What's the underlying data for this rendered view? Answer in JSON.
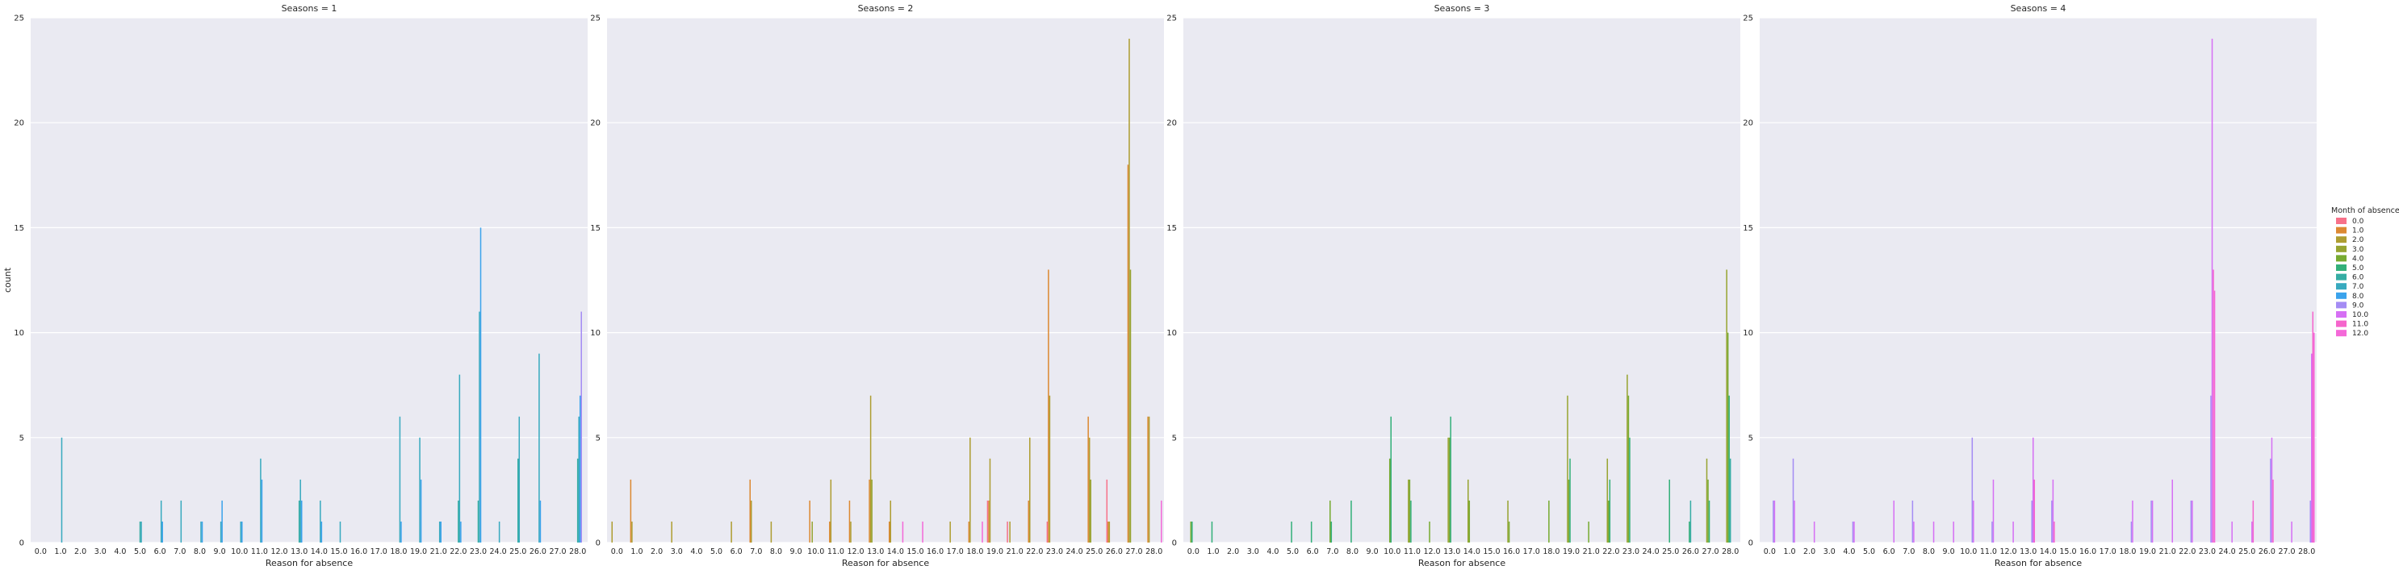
{
  "chart_data": {
    "type": "bar",
    "ylabel": "count",
    "xlabel": "Reason for absence",
    "ylim": [
      0,
      25
    ],
    "yticks": [
      0,
      5,
      10,
      15,
      20,
      25
    ],
    "categories": [
      "0.0",
      "1.0",
      "2.0",
      "3.0",
      "4.0",
      "5.0",
      "6.0",
      "7.0",
      "8.0",
      "9.0",
      "10.0",
      "11.0",
      "12.0",
      "13.0",
      "14.0",
      "15.0",
      "16.0",
      "17.0",
      "18.0",
      "19.0",
      "21.0",
      "22.0",
      "23.0",
      "24.0",
      "25.0",
      "26.0",
      "27.0",
      "28.0"
    ],
    "hue_title": "Month of absence",
    "hue_levels": [
      "0.0",
      "1.0",
      "2.0",
      "3.0",
      "4.0",
      "5.0",
      "6.0",
      "7.0",
      "8.0",
      "9.0",
      "10.0",
      "11.0",
      "12.0"
    ],
    "hue_colors": [
      "#f77189",
      "#dc8932",
      "#ae9d31",
      "#97a431",
      "#77ab31",
      "#33b07a",
      "#36ada4",
      "#38aabf",
      "#3ba3ec",
      "#a48cf4",
      "#d670f4",
      "#f565cc",
      "#f469d8"
    ],
    "grid": true,
    "legend_position": "right",
    "panels": [
      {
        "title": "Seasons = 1",
        "bars": [
          {
            "cat": "1.0",
            "hue": "7.0",
            "v": 5
          },
          {
            "cat": "5.0",
            "hue": "6.0",
            "v": 1
          },
          {
            "cat": "5.0",
            "hue": "7.0",
            "v": 1
          },
          {
            "cat": "6.0",
            "hue": "7.0",
            "v": 2
          },
          {
            "cat": "6.0",
            "hue": "8.0",
            "v": 1
          },
          {
            "cat": "7.0",
            "hue": "7.0",
            "v": 2
          },
          {
            "cat": "8.0",
            "hue": "7.0",
            "v": 1
          },
          {
            "cat": "8.0",
            "hue": "8.0",
            "v": 1
          },
          {
            "cat": "9.0",
            "hue": "7.0",
            "v": 1
          },
          {
            "cat": "9.0",
            "hue": "8.0",
            "v": 2
          },
          {
            "cat": "10.0",
            "hue": "7.0",
            "v": 1
          },
          {
            "cat": "10.0",
            "hue": "8.0",
            "v": 1
          },
          {
            "cat": "11.0",
            "hue": "7.0",
            "v": 4
          },
          {
            "cat": "11.0",
            "hue": "8.0",
            "v": 3
          },
          {
            "cat": "13.0",
            "hue": "6.0",
            "v": 2
          },
          {
            "cat": "13.0",
            "hue": "7.0",
            "v": 3
          },
          {
            "cat": "13.0",
            "hue": "8.0",
            "v": 2
          },
          {
            "cat": "14.0",
            "hue": "7.0",
            "v": 2
          },
          {
            "cat": "14.0",
            "hue": "8.0",
            "v": 1
          },
          {
            "cat": "15.0",
            "hue": "7.0",
            "v": 1
          },
          {
            "cat": "18.0",
            "hue": "7.0",
            "v": 6
          },
          {
            "cat": "18.0",
            "hue": "8.0",
            "v": 1
          },
          {
            "cat": "19.0",
            "hue": "7.0",
            "v": 5
          },
          {
            "cat": "19.0",
            "hue": "8.0",
            "v": 3
          },
          {
            "cat": "21.0",
            "hue": "7.0",
            "v": 1
          },
          {
            "cat": "21.0",
            "hue": "8.0",
            "v": 1
          },
          {
            "cat": "22.0",
            "hue": "6.0",
            "v": 2
          },
          {
            "cat": "22.0",
            "hue": "7.0",
            "v": 8
          },
          {
            "cat": "22.0",
            "hue": "8.0",
            "v": 1
          },
          {
            "cat": "23.0",
            "hue": "6.0",
            "v": 2
          },
          {
            "cat": "23.0",
            "hue": "7.0",
            "v": 11
          },
          {
            "cat": "23.0",
            "hue": "8.0",
            "v": 15
          },
          {
            "cat": "24.0",
            "hue": "7.0",
            "v": 1
          },
          {
            "cat": "25.0",
            "hue": "6.0",
            "v": 4
          },
          {
            "cat": "25.0",
            "hue": "7.0",
            "v": 6
          },
          {
            "cat": "26.0",
            "hue": "7.0",
            "v": 9
          },
          {
            "cat": "26.0",
            "hue": "8.0",
            "v": 2
          },
          {
            "cat": "28.0",
            "hue": "6.0",
            "v": 4
          },
          {
            "cat": "28.0",
            "hue": "7.0",
            "v": 6
          },
          {
            "cat": "28.0",
            "hue": "8.0",
            "v": 7
          },
          {
            "cat": "28.0",
            "hue": "9.0",
            "v": 11
          }
        ]
      },
      {
        "title": "Seasons = 2",
        "bars": [
          {
            "cat": "0.0",
            "hue": "2.0",
            "v": 1
          },
          {
            "cat": "1.0",
            "hue": "1.0",
            "v": 3
          },
          {
            "cat": "1.0",
            "hue": "2.0",
            "v": 1
          },
          {
            "cat": "3.0",
            "hue": "2.0",
            "v": 1
          },
          {
            "cat": "6.0",
            "hue": "2.0",
            "v": 1
          },
          {
            "cat": "7.0",
            "hue": "1.0",
            "v": 3
          },
          {
            "cat": "7.0",
            "hue": "2.0",
            "v": 2
          },
          {
            "cat": "8.0",
            "hue": "2.0",
            "v": 1
          },
          {
            "cat": "10.0",
            "hue": "1.0",
            "v": 2
          },
          {
            "cat": "10.0",
            "hue": "3.0",
            "v": 1
          },
          {
            "cat": "11.0",
            "hue": "2.0",
            "v": 3
          },
          {
            "cat": "11.0",
            "hue": "1.0",
            "v": 1
          },
          {
            "cat": "12.0",
            "hue": "1.0",
            "v": 2
          },
          {
            "cat": "12.0",
            "hue": "2.0",
            "v": 1
          },
          {
            "cat": "13.0",
            "hue": "1.0",
            "v": 3
          },
          {
            "cat": "13.0",
            "hue": "2.0",
            "v": 7
          },
          {
            "cat": "13.0",
            "hue": "3.0",
            "v": 3
          },
          {
            "cat": "14.0",
            "hue": "1.0",
            "v": 1
          },
          {
            "cat": "14.0",
            "hue": "12.0",
            "v": 1
          },
          {
            "cat": "14.0",
            "hue": "2.0",
            "v": 2
          },
          {
            "cat": "15.0",
            "hue": "12.0",
            "v": 1
          },
          {
            "cat": "17.0",
            "hue": "2.0",
            "v": 1
          },
          {
            "cat": "18.0",
            "hue": "1.0",
            "v": 1
          },
          {
            "cat": "18.0",
            "hue": "2.0",
            "v": 5
          },
          {
            "cat": "18.0",
            "hue": "12.0",
            "v": 1
          },
          {
            "cat": "19.0",
            "hue": "1.0",
            "v": 2
          },
          {
            "cat": "19.0",
            "hue": "2.0",
            "v": 4
          },
          {
            "cat": "19.0",
            "hue": "0.0",
            "v": 2
          },
          {
            "cat": "21.0",
            "hue": "0.0",
            "v": 1
          },
          {
            "cat": "21.0",
            "hue": "2.0",
            "v": 1
          },
          {
            "cat": "22.0",
            "hue": "1.0",
            "v": 2
          },
          {
            "cat": "22.0",
            "hue": "2.0",
            "v": 5
          },
          {
            "cat": "23.0",
            "hue": "1.0",
            "v": 13
          },
          {
            "cat": "23.0",
            "hue": "2.0",
            "v": 7
          },
          {
            "cat": "23.0",
            "hue": "0.0",
            "v": 1
          },
          {
            "cat": "25.0",
            "hue": "1.0",
            "v": 6
          },
          {
            "cat": "25.0",
            "hue": "2.0",
            "v": 5
          },
          {
            "cat": "25.0",
            "hue": "3.0",
            "v": 3
          },
          {
            "cat": "26.0",
            "hue": "1.0",
            "v": 1
          },
          {
            "cat": "26.0",
            "hue": "0.0",
            "v": 3
          },
          {
            "cat": "26.0",
            "hue": "2.0",
            "v": 1
          },
          {
            "cat": "27.0",
            "hue": "1.0",
            "v": 18
          },
          {
            "cat": "27.0",
            "hue": "2.0",
            "v": 24
          },
          {
            "cat": "27.0",
            "hue": "3.0",
            "v": 13
          },
          {
            "cat": "28.0",
            "hue": "1.0",
            "v": 6
          },
          {
            "cat": "28.0",
            "hue": "2.0",
            "v": 6
          },
          {
            "cat": "28.0",
            "hue": "12.0",
            "v": 2
          }
        ]
      },
      {
        "title": "Seasons = 3",
        "bars": [
          {
            "cat": "0.0",
            "hue": "4.0",
            "v": 1
          },
          {
            "cat": "0.0",
            "hue": "5.0",
            "v": 1
          },
          {
            "cat": "1.0",
            "hue": "5.0",
            "v": 1
          },
          {
            "cat": "5.0",
            "hue": "5.0",
            "v": 1
          },
          {
            "cat": "6.0",
            "hue": "5.0",
            "v": 1
          },
          {
            "cat": "7.0",
            "hue": "4.0",
            "v": 2
          },
          {
            "cat": "7.0",
            "hue": "5.0",
            "v": 1
          },
          {
            "cat": "8.0",
            "hue": "5.0",
            "v": 2
          },
          {
            "cat": "10.0",
            "hue": "5.0",
            "v": 6
          },
          {
            "cat": "10.0",
            "hue": "4.0",
            "v": 4
          },
          {
            "cat": "11.0",
            "hue": "4.0",
            "v": 3
          },
          {
            "cat": "11.0",
            "hue": "3.0",
            "v": 3
          },
          {
            "cat": "11.0",
            "hue": "5.0",
            "v": 2
          },
          {
            "cat": "12.0",
            "hue": "4.0",
            "v": 1
          },
          {
            "cat": "13.0",
            "hue": "4.0",
            "v": 5
          },
          {
            "cat": "13.0",
            "hue": "5.0",
            "v": 6
          },
          {
            "cat": "13.0",
            "hue": "3.0",
            "v": 5
          },
          {
            "cat": "14.0",
            "hue": "3.0",
            "v": 3
          },
          {
            "cat": "14.0",
            "hue": "4.0",
            "v": 2
          },
          {
            "cat": "16.0",
            "hue": "3.0",
            "v": 2
          },
          {
            "cat": "16.0",
            "hue": "4.0",
            "v": 1
          },
          {
            "cat": "18.0",
            "hue": "4.0",
            "v": 2
          },
          {
            "cat": "19.0",
            "hue": "3.0",
            "v": 7
          },
          {
            "cat": "19.0",
            "hue": "4.0",
            "v": 3
          },
          {
            "cat": "19.0",
            "hue": "5.0",
            "v": 4
          },
          {
            "cat": "21.0",
            "hue": "4.0",
            "v": 1
          },
          {
            "cat": "22.0",
            "hue": "3.0",
            "v": 4
          },
          {
            "cat": "22.0",
            "hue": "4.0",
            "v": 2
          },
          {
            "cat": "22.0",
            "hue": "5.0",
            "v": 3
          },
          {
            "cat": "23.0",
            "hue": "3.0",
            "v": 8
          },
          {
            "cat": "23.0",
            "hue": "4.0",
            "v": 7
          },
          {
            "cat": "23.0",
            "hue": "5.0",
            "v": 5
          },
          {
            "cat": "25.0",
            "hue": "5.0",
            "v": 3
          },
          {
            "cat": "26.0",
            "hue": "6.0",
            "v": 2
          },
          {
            "cat": "26.0",
            "hue": "5.0",
            "v": 1
          },
          {
            "cat": "27.0",
            "hue": "3.0",
            "v": 4
          },
          {
            "cat": "27.0",
            "hue": "4.0",
            "v": 3
          },
          {
            "cat": "27.0",
            "hue": "5.0",
            "v": 2
          },
          {
            "cat": "28.0",
            "hue": "3.0",
            "v": 13
          },
          {
            "cat": "28.0",
            "hue": "4.0",
            "v": 10
          },
          {
            "cat": "28.0",
            "hue": "5.0",
            "v": 7
          },
          {
            "cat": "28.0",
            "hue": "6.0",
            "v": 4
          }
        ]
      },
      {
        "title": "Seasons = 4",
        "bars": [
          {
            "cat": "0.0",
            "hue": "9.0",
            "v": 2
          },
          {
            "cat": "0.0",
            "hue": "10.0",
            "v": 2
          },
          {
            "cat": "1.0",
            "hue": "9.0",
            "v": 4
          },
          {
            "cat": "1.0",
            "hue": "10.0",
            "v": 2
          },
          {
            "cat": "2.0",
            "hue": "10.0",
            "v": 1
          },
          {
            "cat": "4.0",
            "hue": "9.0",
            "v": 1
          },
          {
            "cat": "4.0",
            "hue": "10.0",
            "v": 1
          },
          {
            "cat": "6.0",
            "hue": "10.0",
            "v": 2
          },
          {
            "cat": "7.0",
            "hue": "9.0",
            "v": 2
          },
          {
            "cat": "7.0",
            "hue": "10.0",
            "v": 1
          },
          {
            "cat": "8.0",
            "hue": "10.0",
            "v": 1
          },
          {
            "cat": "9.0",
            "hue": "10.0",
            "v": 1
          },
          {
            "cat": "10.0",
            "hue": "9.0",
            "v": 5
          },
          {
            "cat": "10.0",
            "hue": "10.0",
            "v": 2
          },
          {
            "cat": "11.0",
            "hue": "10.0",
            "v": 3
          },
          {
            "cat": "11.0",
            "hue": "9.0",
            "v": 1
          },
          {
            "cat": "12.0",
            "hue": "10.0",
            "v": 1
          },
          {
            "cat": "13.0",
            "hue": "10.0",
            "v": 5
          },
          {
            "cat": "13.0",
            "hue": "9.0",
            "v": 2
          },
          {
            "cat": "13.0",
            "hue": "11.0",
            "v": 3
          },
          {
            "cat": "14.0",
            "hue": "9.0",
            "v": 2
          },
          {
            "cat": "14.0",
            "hue": "10.0",
            "v": 3
          },
          {
            "cat": "14.0",
            "hue": "11.0",
            "v": 1
          },
          {
            "cat": "18.0",
            "hue": "9.0",
            "v": 1
          },
          {
            "cat": "18.0",
            "hue": "10.0",
            "v": 2
          },
          {
            "cat": "19.0",
            "hue": "10.0",
            "v": 2
          },
          {
            "cat": "19.0",
            "hue": "9.0",
            "v": 2
          },
          {
            "cat": "21.0",
            "hue": "10.0",
            "v": 3
          },
          {
            "cat": "22.0",
            "hue": "9.0",
            "v": 2
          },
          {
            "cat": "22.0",
            "hue": "10.0",
            "v": 2
          },
          {
            "cat": "23.0",
            "hue": "9.0",
            "v": 7
          },
          {
            "cat": "23.0",
            "hue": "10.0",
            "v": 24
          },
          {
            "cat": "23.0",
            "hue": "11.0",
            "v": 13
          },
          {
            "cat": "23.0",
            "hue": "12.0",
            "v": 12
          },
          {
            "cat": "24.0",
            "hue": "10.0",
            "v": 1
          },
          {
            "cat": "25.0",
            "hue": "10.0",
            "v": 1
          },
          {
            "cat": "25.0",
            "hue": "11.0",
            "v": 2
          },
          {
            "cat": "26.0",
            "hue": "10.0",
            "v": 5
          },
          {
            "cat": "26.0",
            "hue": "11.0",
            "v": 3
          },
          {
            "cat": "26.0",
            "hue": "9.0",
            "v": 4
          },
          {
            "cat": "27.0",
            "hue": "10.0",
            "v": 1
          },
          {
            "cat": "28.0",
            "hue": "9.0",
            "v": 2
          },
          {
            "cat": "28.0",
            "hue": "10.0",
            "v": 9
          },
          {
            "cat": "28.0",
            "hue": "11.0",
            "v": 11
          },
          {
            "cat": "28.0",
            "hue": "12.0",
            "v": 10
          }
        ]
      }
    ]
  }
}
